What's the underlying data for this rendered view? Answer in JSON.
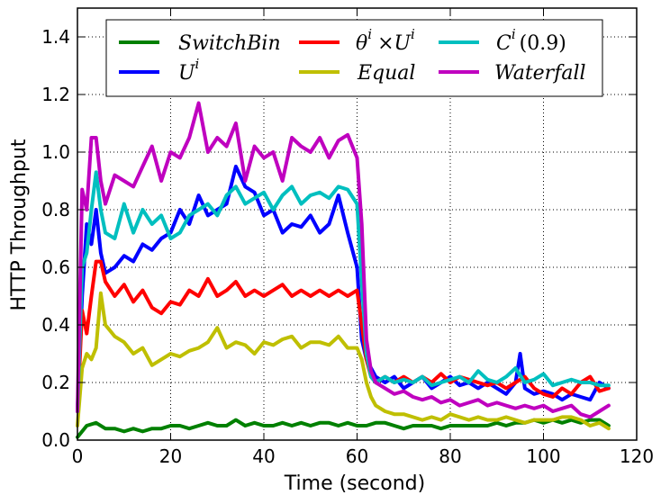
{
  "chart_data": {
    "type": "line",
    "title": "",
    "xlabel": "Time (second)",
    "ylabel": "HTTP Throughput",
    "xlim": [
      0,
      120
    ],
    "ylim": [
      0,
      1.5
    ],
    "xticks": [
      0,
      20,
      40,
      60,
      80,
      100,
      120
    ],
    "yticks": [
      0.0,
      0.2,
      0.4,
      0.6,
      0.8,
      1.0,
      1.2,
      1.4
    ],
    "xtick_labels": [
      "0",
      "20",
      "40",
      "60",
      "80",
      "100",
      "120"
    ],
    "ytick_labels": [
      "0.0",
      "0.2",
      "0.4",
      "0.6",
      "0.8",
      "1.0",
      "1.2",
      "1.4"
    ],
    "grid": true,
    "legend_position": "top, 3 columns",
    "series": [
      {
        "name": "SwitchBin",
        "color": "#008000",
        "x": [
          0,
          2,
          4,
          6,
          8,
          10,
          12,
          14,
          16,
          18,
          20,
          22,
          24,
          26,
          28,
          30,
          32,
          34,
          36,
          38,
          40,
          42,
          44,
          46,
          48,
          50,
          52,
          54,
          56,
          58,
          60,
          62,
          64,
          66,
          68,
          70,
          72,
          74,
          76,
          78,
          80,
          82,
          84,
          86,
          88,
          90,
          92,
          94,
          96,
          98,
          100,
          102,
          104,
          106,
          108,
          110,
          112,
          114
        ],
        "y": [
          0.01,
          0.05,
          0.06,
          0.04,
          0.04,
          0.03,
          0.04,
          0.03,
          0.04,
          0.04,
          0.05,
          0.05,
          0.04,
          0.05,
          0.06,
          0.05,
          0.05,
          0.07,
          0.05,
          0.06,
          0.05,
          0.05,
          0.06,
          0.05,
          0.06,
          0.05,
          0.06,
          0.06,
          0.05,
          0.06,
          0.05,
          0.05,
          0.06,
          0.06,
          0.05,
          0.04,
          0.05,
          0.05,
          0.05,
          0.04,
          0.05,
          0.05,
          0.05,
          0.05,
          0.05,
          0.06,
          0.05,
          0.06,
          0.06,
          0.07,
          0.06,
          0.07,
          0.06,
          0.07,
          0.06,
          0.07,
          0.07,
          0.05
        ]
      },
      {
        "name": "U^i",
        "color": "#0000ff",
        "x": [
          0,
          1,
          2,
          3,
          4,
          5,
          6,
          8,
          10,
          12,
          14,
          16,
          18,
          20,
          22,
          24,
          26,
          28,
          30,
          32,
          34,
          36,
          38,
          40,
          42,
          44,
          46,
          48,
          50,
          52,
          54,
          56,
          58,
          60,
          61,
          62,
          63,
          64,
          66,
          68,
          70,
          72,
          74,
          76,
          78,
          80,
          82,
          84,
          86,
          88,
          90,
          92,
          94,
          95,
          96,
          98,
          100,
          102,
          104,
          106,
          108,
          110,
          112,
          114
        ],
        "y": [
          0.1,
          0.5,
          0.75,
          0.68,
          0.8,
          0.65,
          0.58,
          0.6,
          0.64,
          0.62,
          0.68,
          0.66,
          0.7,
          0.72,
          0.8,
          0.75,
          0.85,
          0.78,
          0.8,
          0.82,
          0.95,
          0.88,
          0.86,
          0.78,
          0.8,
          0.72,
          0.75,
          0.74,
          0.78,
          0.72,
          0.75,
          0.85,
          0.72,
          0.6,
          0.35,
          0.28,
          0.25,
          0.22,
          0.2,
          0.22,
          0.18,
          0.2,
          0.22,
          0.18,
          0.2,
          0.22,
          0.19,
          0.2,
          0.18,
          0.2,
          0.18,
          0.16,
          0.2,
          0.3,
          0.18,
          0.16,
          0.17,
          0.16,
          0.14,
          0.16,
          0.15,
          0.14,
          0.2,
          0.18
        ]
      },
      {
        "name": "θ^i ×U^i",
        "color": "#ff0000",
        "x": [
          0,
          1,
          2,
          3,
          4,
          5,
          6,
          8,
          10,
          12,
          14,
          16,
          18,
          20,
          22,
          24,
          26,
          28,
          30,
          32,
          34,
          36,
          38,
          40,
          42,
          44,
          46,
          48,
          50,
          52,
          54,
          56,
          58,
          60,
          61,
          62,
          63,
          64,
          66,
          68,
          70,
          72,
          74,
          76,
          78,
          80,
          82,
          84,
          86,
          88,
          90,
          92,
          94,
          96,
          98,
          100,
          102,
          104,
          106,
          108,
          110,
          112,
          114
        ],
        "y": [
          0.1,
          0.45,
          0.37,
          0.5,
          0.62,
          0.62,
          0.55,
          0.5,
          0.54,
          0.48,
          0.52,
          0.46,
          0.44,
          0.48,
          0.47,
          0.52,
          0.5,
          0.56,
          0.5,
          0.52,
          0.55,
          0.5,
          0.52,
          0.5,
          0.52,
          0.54,
          0.5,
          0.52,
          0.5,
          0.52,
          0.5,
          0.52,
          0.5,
          0.52,
          0.4,
          0.28,
          0.22,
          0.2,
          0.22,
          0.2,
          0.22,
          0.2,
          0.22,
          0.2,
          0.23,
          0.2,
          0.22,
          0.21,
          0.2,
          0.19,
          0.2,
          0.18,
          0.2,
          0.22,
          0.18,
          0.16,
          0.15,
          0.18,
          0.16,
          0.2,
          0.22,
          0.17,
          0.18
        ]
      },
      {
        "name": "Equal",
        "color": "#bfbf00",
        "x": [
          0,
          1,
          2,
          3,
          4,
          5,
          6,
          8,
          10,
          12,
          14,
          16,
          18,
          20,
          22,
          24,
          26,
          28,
          30,
          32,
          34,
          36,
          38,
          40,
          42,
          44,
          46,
          48,
          50,
          52,
          54,
          56,
          58,
          60,
          61,
          62,
          63,
          64,
          66,
          68,
          70,
          72,
          74,
          76,
          78,
          80,
          82,
          84,
          86,
          88,
          90,
          92,
          94,
          96,
          98,
          100,
          102,
          104,
          106,
          108,
          110,
          112,
          114
        ],
        "y": [
          0.05,
          0.25,
          0.3,
          0.28,
          0.32,
          0.51,
          0.4,
          0.36,
          0.34,
          0.3,
          0.32,
          0.26,
          0.28,
          0.3,
          0.29,
          0.31,
          0.32,
          0.34,
          0.39,
          0.32,
          0.34,
          0.33,
          0.3,
          0.34,
          0.33,
          0.35,
          0.36,
          0.32,
          0.34,
          0.34,
          0.33,
          0.36,
          0.32,
          0.32,
          0.28,
          0.2,
          0.15,
          0.12,
          0.1,
          0.09,
          0.09,
          0.08,
          0.07,
          0.08,
          0.07,
          0.09,
          0.08,
          0.07,
          0.08,
          0.07,
          0.07,
          0.08,
          0.07,
          0.06,
          0.07,
          0.07,
          0.07,
          0.08,
          0.08,
          0.07,
          0.05,
          0.06,
          0.04
        ]
      },
      {
        "name": "C^i (0.9)",
        "color": "#00bfbf",
        "x": [
          0,
          1,
          2,
          3,
          4,
          5,
          6,
          8,
          10,
          12,
          14,
          16,
          18,
          20,
          22,
          24,
          26,
          28,
          30,
          32,
          34,
          36,
          38,
          40,
          42,
          44,
          46,
          48,
          50,
          52,
          54,
          56,
          58,
          60,
          61,
          62,
          63,
          64,
          66,
          68,
          70,
          72,
          74,
          76,
          78,
          80,
          82,
          84,
          86,
          88,
          90,
          92,
          94,
          96,
          98,
          100,
          102,
          104,
          106,
          108,
          110,
          112,
          114
        ],
        "y": [
          0.1,
          0.6,
          0.65,
          0.8,
          0.93,
          0.8,
          0.72,
          0.7,
          0.82,
          0.72,
          0.8,
          0.75,
          0.78,
          0.7,
          0.72,
          0.78,
          0.8,
          0.82,
          0.78,
          0.85,
          0.88,
          0.82,
          0.84,
          0.86,
          0.8,
          0.85,
          0.88,
          0.82,
          0.85,
          0.86,
          0.84,
          0.88,
          0.87,
          0.82,
          0.55,
          0.3,
          0.22,
          0.2,
          0.22,
          0.2,
          0.21,
          0.2,
          0.22,
          0.19,
          0.2,
          0.21,
          0.22,
          0.2,
          0.24,
          0.21,
          0.2,
          0.22,
          0.25,
          0.2,
          0.21,
          0.23,
          0.19,
          0.2,
          0.21,
          0.2,
          0.2,
          0.19,
          0.19
        ]
      },
      {
        "name": "Waterfall",
        "color": "#bf00bf",
        "x": [
          0,
          1,
          2,
          3,
          4,
          5,
          6,
          8,
          10,
          12,
          14,
          16,
          18,
          20,
          22,
          24,
          26,
          28,
          30,
          32,
          34,
          36,
          38,
          40,
          42,
          44,
          46,
          48,
          50,
          52,
          54,
          56,
          58,
          60,
          61,
          62,
          63,
          64,
          66,
          68,
          70,
          72,
          74,
          76,
          78,
          80,
          82,
          84,
          86,
          88,
          90,
          92,
          94,
          96,
          98,
          100,
          102,
          104,
          106,
          108,
          110,
          112,
          114
        ],
        "y": [
          0.1,
          0.87,
          0.8,
          1.05,
          1.05,
          0.9,
          0.82,
          0.92,
          0.9,
          0.88,
          0.95,
          1.02,
          0.9,
          1.0,
          0.98,
          1.05,
          1.17,
          1.0,
          1.05,
          1.02,
          1.1,
          0.9,
          1.02,
          0.98,
          1.0,
          0.9,
          1.05,
          1.02,
          1.0,
          1.05,
          0.98,
          1.04,
          1.06,
          0.98,
          0.75,
          0.35,
          0.24,
          0.2,
          0.18,
          0.16,
          0.17,
          0.15,
          0.14,
          0.15,
          0.13,
          0.14,
          0.12,
          0.13,
          0.14,
          0.12,
          0.13,
          0.12,
          0.11,
          0.12,
          0.11,
          0.12,
          0.1,
          0.11,
          0.12,
          0.09,
          0.08,
          0.1,
          0.12
        ]
      }
    ],
    "legend_labels": [
      "SwitchBin",
      "U",
      "θ",
      "×U",
      "Equal",
      "C",
      "(0.9)",
      "Waterfall"
    ],
    "legend_superscripts": [
      "i",
      "i",
      "i",
      "i"
    ]
  }
}
